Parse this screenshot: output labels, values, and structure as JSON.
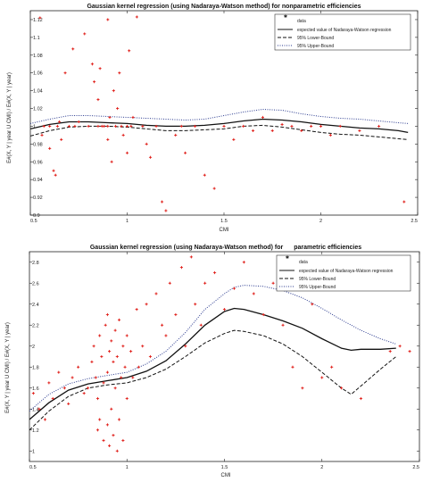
{
  "chart_data": [
    {
      "type": "scatter",
      "title": "Gaussian kernel regression (using Nadaraya-Watson method) for nonparametric efficiencies",
      "xlabel": "CMI",
      "ylabel": "E#(X, Y | year U CMI) / E#(X, Y | year)",
      "xlim": [
        0.5,
        2.5
      ],
      "ylim": [
        0.9,
        1.13
      ],
      "xticks": [
        0.5,
        1,
        1.5,
        2,
        2.5
      ],
      "xtick_labels": [
        "0.5",
        "1",
        "1.5",
        "2",
        "2.5"
      ],
      "yticks": [
        0.9,
        0.92,
        0.94,
        0.96,
        0.98,
        1,
        1.02,
        1.04,
        1.06,
        1.08,
        1.1,
        1.12
      ],
      "ytick_labels": [
        "0.9",
        "0.92",
        "0.94",
        "0.96",
        "0.98",
        "1",
        "1.02",
        "1.04",
        "1.06",
        "1.08",
        "1.1",
        "1.12"
      ],
      "legend": [
        {
          "label": "data",
          "style": "marker"
        },
        {
          "label": "expected value of Nadaraya-Watson regression",
          "style": "solid"
        },
        {
          "label": "95% Lower-Bound",
          "style": "dashed"
        },
        {
          "label": "95% Upper-Bound",
          "style": "dotted"
        }
      ],
      "legend_position": "top-right",
      "grid": false,
      "series": [
        {
          "name": "data",
          "kind": "points",
          "color": "#e0201b",
          "x": [
            0.55,
            0.56,
            0.57,
            0.6,
            0.6,
            0.62,
            0.63,
            0.64,
            0.65,
            0.66,
            0.68,
            0.7,
            0.72,
            0.73,
            0.75,
            0.78,
            0.8,
            0.82,
            0.83,
            0.85,
            0.85,
            0.86,
            0.87,
            0.88,
            0.9,
            0.9,
            0.9,
            0.91,
            0.92,
            0.93,
            0.94,
            0.95,
            0.96,
            0.97,
            0.98,
            1.0,
            1.0,
            1.01,
            1.02,
            1.03,
            1.05,
            1.06,
            1.08,
            1.1,
            1.12,
            1.15,
            1.18,
            1.2,
            1.25,
            1.28,
            1.3,
            1.35,
            1.4,
            1.45,
            1.5,
            1.55,
            1.6,
            1.65,
            1.7,
            1.75,
            1.8,
            1.85,
            1.9,
            1.95,
            2.0,
            2.05,
            2.1,
            2.2,
            2.3,
            2.43
          ],
          "y": [
            1.122,
            0.99,
            1.0,
            1.0,
            0.975,
            0.95,
            0.945,
            1.0,
            1.005,
            0.985,
            1.06,
            1.0,
            1.087,
            1.0,
            1.005,
            1.104,
            1.0,
            1.07,
            1.05,
            1.0,
            1.03,
            1.065,
            1.0,
            1.0,
            0.985,
            1.0,
            1.12,
            1.01,
            0.96,
            1.04,
            1.0,
            1.02,
            1.06,
            1.0,
            0.99,
            1.0,
            0.97,
            1.085,
            1.0,
            1.01,
            1.123,
            1.135,
            1.0,
            0.98,
            0.965,
            1.0,
            0.915,
            0.905,
            0.99,
            1.0,
            0.97,
            1.0,
            0.945,
            0.93,
            1.0,
            0.985,
            1.0,
            0.995,
            1.01,
            0.995,
            1.002,
            1.0,
            0.995,
            1.0,
            1.0,
            0.99,
            1.0,
            0.995,
            1.0,
            0.915
          ]
        },
        {
          "name": "expected value of Nadaraya-Watson regression",
          "kind": "line",
          "color": "#111111",
          "x": [
            0.5,
            0.6,
            0.7,
            0.8,
            0.9,
            1.0,
            1.1,
            1.2,
            1.3,
            1.4,
            1.5,
            1.6,
            1.7,
            1.8,
            1.9,
            2.0,
            2.1,
            2.2,
            2.3,
            2.4,
            2.45
          ],
          "y": [
            0.997,
            1.002,
            1.005,
            1.005,
            1.004,
            1.003,
            1.001,
            1.0,
            1.0,
            1.001,
            1.003,
            1.006,
            1.008,
            1.007,
            1.005,
            1.002,
            1.0,
            0.998,
            0.997,
            0.995,
            0.993
          ]
        },
        {
          "name": "95% Lower-Bound",
          "kind": "line",
          "color": "#111111",
          "dash": "4,2",
          "x": [
            0.5,
            0.6,
            0.7,
            0.8,
            0.9,
            1.0,
            1.1,
            1.2,
            1.3,
            1.4,
            1.5,
            1.6,
            1.7,
            1.8,
            1.9,
            2.0,
            2.1,
            2.2,
            2.3,
            2.4,
            2.45
          ],
          "y": [
            0.989,
            0.995,
            0.999,
            1.0,
            1.0,
            0.999,
            0.997,
            0.995,
            0.995,
            0.996,
            0.997,
            1.0,
            1.001,
            0.999,
            0.996,
            0.993,
            0.991,
            0.99,
            0.988,
            0.986,
            0.985
          ]
        },
        {
          "name": "95% Upper-Bound",
          "kind": "line",
          "color": "#2a3a8f",
          "dash": "1,1.5",
          "x": [
            0.5,
            0.6,
            0.7,
            0.8,
            0.9,
            1.0,
            1.1,
            1.2,
            1.3,
            1.4,
            1.5,
            1.6,
            1.7,
            1.8,
            1.9,
            2.0,
            2.1,
            2.2,
            2.3,
            2.4,
            2.45
          ],
          "y": [
            1.003,
            1.008,
            1.012,
            1.012,
            1.011,
            1.01,
            1.009,
            1.008,
            1.007,
            1.008,
            1.012,
            1.016,
            1.019,
            1.018,
            1.014,
            1.011,
            1.009,
            1.008,
            1.006,
            1.004,
            1.003
          ]
        }
      ]
    },
    {
      "type": "scatter",
      "title": "Gaussian kernel regression (using Nadaraya-Watson method) for",
      "title_suffix": "parametric efficiencies",
      "xlabel": "CMI",
      "ylabel": "E#(X, Y | year U CMI) / E#(X, Y | year)",
      "xlim": [
        0.5,
        2.5
      ],
      "ylim": [
        0.9,
        2.9
      ],
      "xticks": [
        0.5,
        1,
        1.5,
        2,
        2.5
      ],
      "xtick_labels": [
        "0.5",
        "1",
        "1.5",
        "2",
        "2.5"
      ],
      "yticks": [
        1,
        1.2,
        1.4,
        1.6,
        1.8,
        2,
        2.2,
        2.4,
        2.6,
        2.8
      ],
      "ytick_labels": [
        "1",
        "1.2",
        "1.4",
        "1.6",
        "1.8",
        "2",
        "2.2",
        "2.4",
        "2.6",
        "2.8"
      ],
      "legend": [
        {
          "label": "data",
          "style": "marker"
        },
        {
          "label": "expected value of Nadaraya-Watson regression",
          "style": "solid"
        },
        {
          "label": "95% Lower-Bound",
          "style": "dashed"
        },
        {
          "label": "95% Upper-Bound",
          "style": "dotted"
        }
      ],
      "legend_position": "top-right",
      "grid": false,
      "series": [
        {
          "name": "data",
          "kind": "points",
          "color": "#e0201b",
          "x": [
            0.52,
            0.55,
            0.58,
            0.6,
            0.62,
            0.65,
            0.68,
            0.7,
            0.72,
            0.75,
            0.78,
            0.8,
            0.82,
            0.83,
            0.84,
            0.85,
            0.85,
            0.86,
            0.86,
            0.87,
            0.88,
            0.88,
            0.89,
            0.9,
            0.9,
            0.9,
            0.91,
            0.91,
            0.92,
            0.92,
            0.93,
            0.93,
            0.94,
            0.94,
            0.95,
            0.95,
            0.96,
            0.96,
            0.97,
            0.98,
            0.98,
            0.99,
            1.0,
            1.0,
            1.02,
            1.03,
            1.05,
            1.06,
            1.08,
            1.1,
            1.12,
            1.15,
            1.18,
            1.2,
            1.22,
            1.25,
            1.28,
            1.3,
            1.33,
            1.35,
            1.38,
            1.4,
            1.45,
            1.5,
            1.55,
            1.6,
            1.65,
            1.7,
            1.75,
            1.8,
            1.85,
            1.9,
            1.95,
            2.0,
            2.05,
            2.1,
            2.2,
            2.35,
            2.4,
            2.45
          ],
          "y": [
            1.55,
            1.4,
            1.3,
            1.65,
            1.5,
            1.75,
            1.6,
            1.45,
            1.7,
            1.8,
            1.55,
            1.6,
            1.85,
            2.0,
            1.7,
            1.2,
            1.5,
            2.1,
            1.3,
            1.9,
            1.1,
            1.65,
            2.2,
            1.25,
            1.75,
            2.3,
            1.05,
            1.95,
            1.4,
            2.05,
            1.15,
            1.85,
            1.6,
            2.15,
            1.0,
            1.9,
            1.3,
            2.25,
            1.7,
            1.1,
            2.0,
            1.8,
            1.5,
            2.1,
            1.95,
            1.7,
            2.35,
            1.8,
            2.0,
            2.4,
            1.9,
            2.5,
            2.2,
            2.1,
            2.6,
            2.3,
            2.75,
            2.0,
            2.85,
            2.4,
            2.2,
            2.6,
            2.7,
            2.35,
            2.55,
            2.8,
            2.5,
            2.3,
            2.6,
            2.2,
            1.8,
            1.6,
            2.4,
            1.7,
            1.8,
            1.6,
            1.5,
            1.95,
            2.0,
            1.95
          ]
        },
        {
          "name": "expected value of Nadaraya-Watson regression",
          "kind": "line",
          "color": "#111111",
          "x": [
            0.5,
            0.6,
            0.7,
            0.8,
            0.9,
            1.0,
            1.1,
            1.2,
            1.3,
            1.4,
            1.5,
            1.55,
            1.6,
            1.7,
            1.8,
            1.9,
            2.0,
            2.1,
            2.15,
            2.2,
            2.3,
            2.38
          ],
          "y": [
            1.3,
            1.46,
            1.58,
            1.64,
            1.67,
            1.7,
            1.76,
            1.86,
            2.02,
            2.2,
            2.33,
            2.36,
            2.35,
            2.3,
            2.24,
            2.17,
            2.07,
            1.98,
            1.96,
            1.97,
            1.97,
            1.98
          ]
        },
        {
          "name": "95% Lower-Bound",
          "kind": "line",
          "color": "#111111",
          "dash": "4,2",
          "x": [
            0.5,
            0.6,
            0.7,
            0.8,
            0.9,
            1.0,
            1.1,
            1.2,
            1.3,
            1.4,
            1.5,
            1.55,
            1.6,
            1.7,
            1.8,
            1.9,
            2.0,
            2.1,
            2.15,
            2.2,
            2.3,
            2.38
          ],
          "y": [
            1.2,
            1.38,
            1.52,
            1.6,
            1.63,
            1.65,
            1.7,
            1.78,
            1.9,
            2.03,
            2.12,
            2.15,
            2.14,
            2.1,
            2.02,
            1.9,
            1.75,
            1.6,
            1.54,
            1.62,
            1.78,
            1.9
          ]
        },
        {
          "name": "95% Upper-Bound",
          "kind": "line",
          "color": "#2a3a8f",
          "dash": "1,1.5",
          "x": [
            0.5,
            0.6,
            0.7,
            0.8,
            0.9,
            1.0,
            1.1,
            1.2,
            1.3,
            1.4,
            1.5,
            1.55,
            1.6,
            1.7,
            1.8,
            1.9,
            2.0,
            2.1,
            2.2,
            2.3,
            2.38
          ],
          "y": [
            1.38,
            1.54,
            1.64,
            1.69,
            1.72,
            1.75,
            1.83,
            1.95,
            2.13,
            2.35,
            2.5,
            2.56,
            2.58,
            2.57,
            2.53,
            2.46,
            2.36,
            2.25,
            2.15,
            2.07,
            2.02
          ]
        }
      ]
    }
  ]
}
